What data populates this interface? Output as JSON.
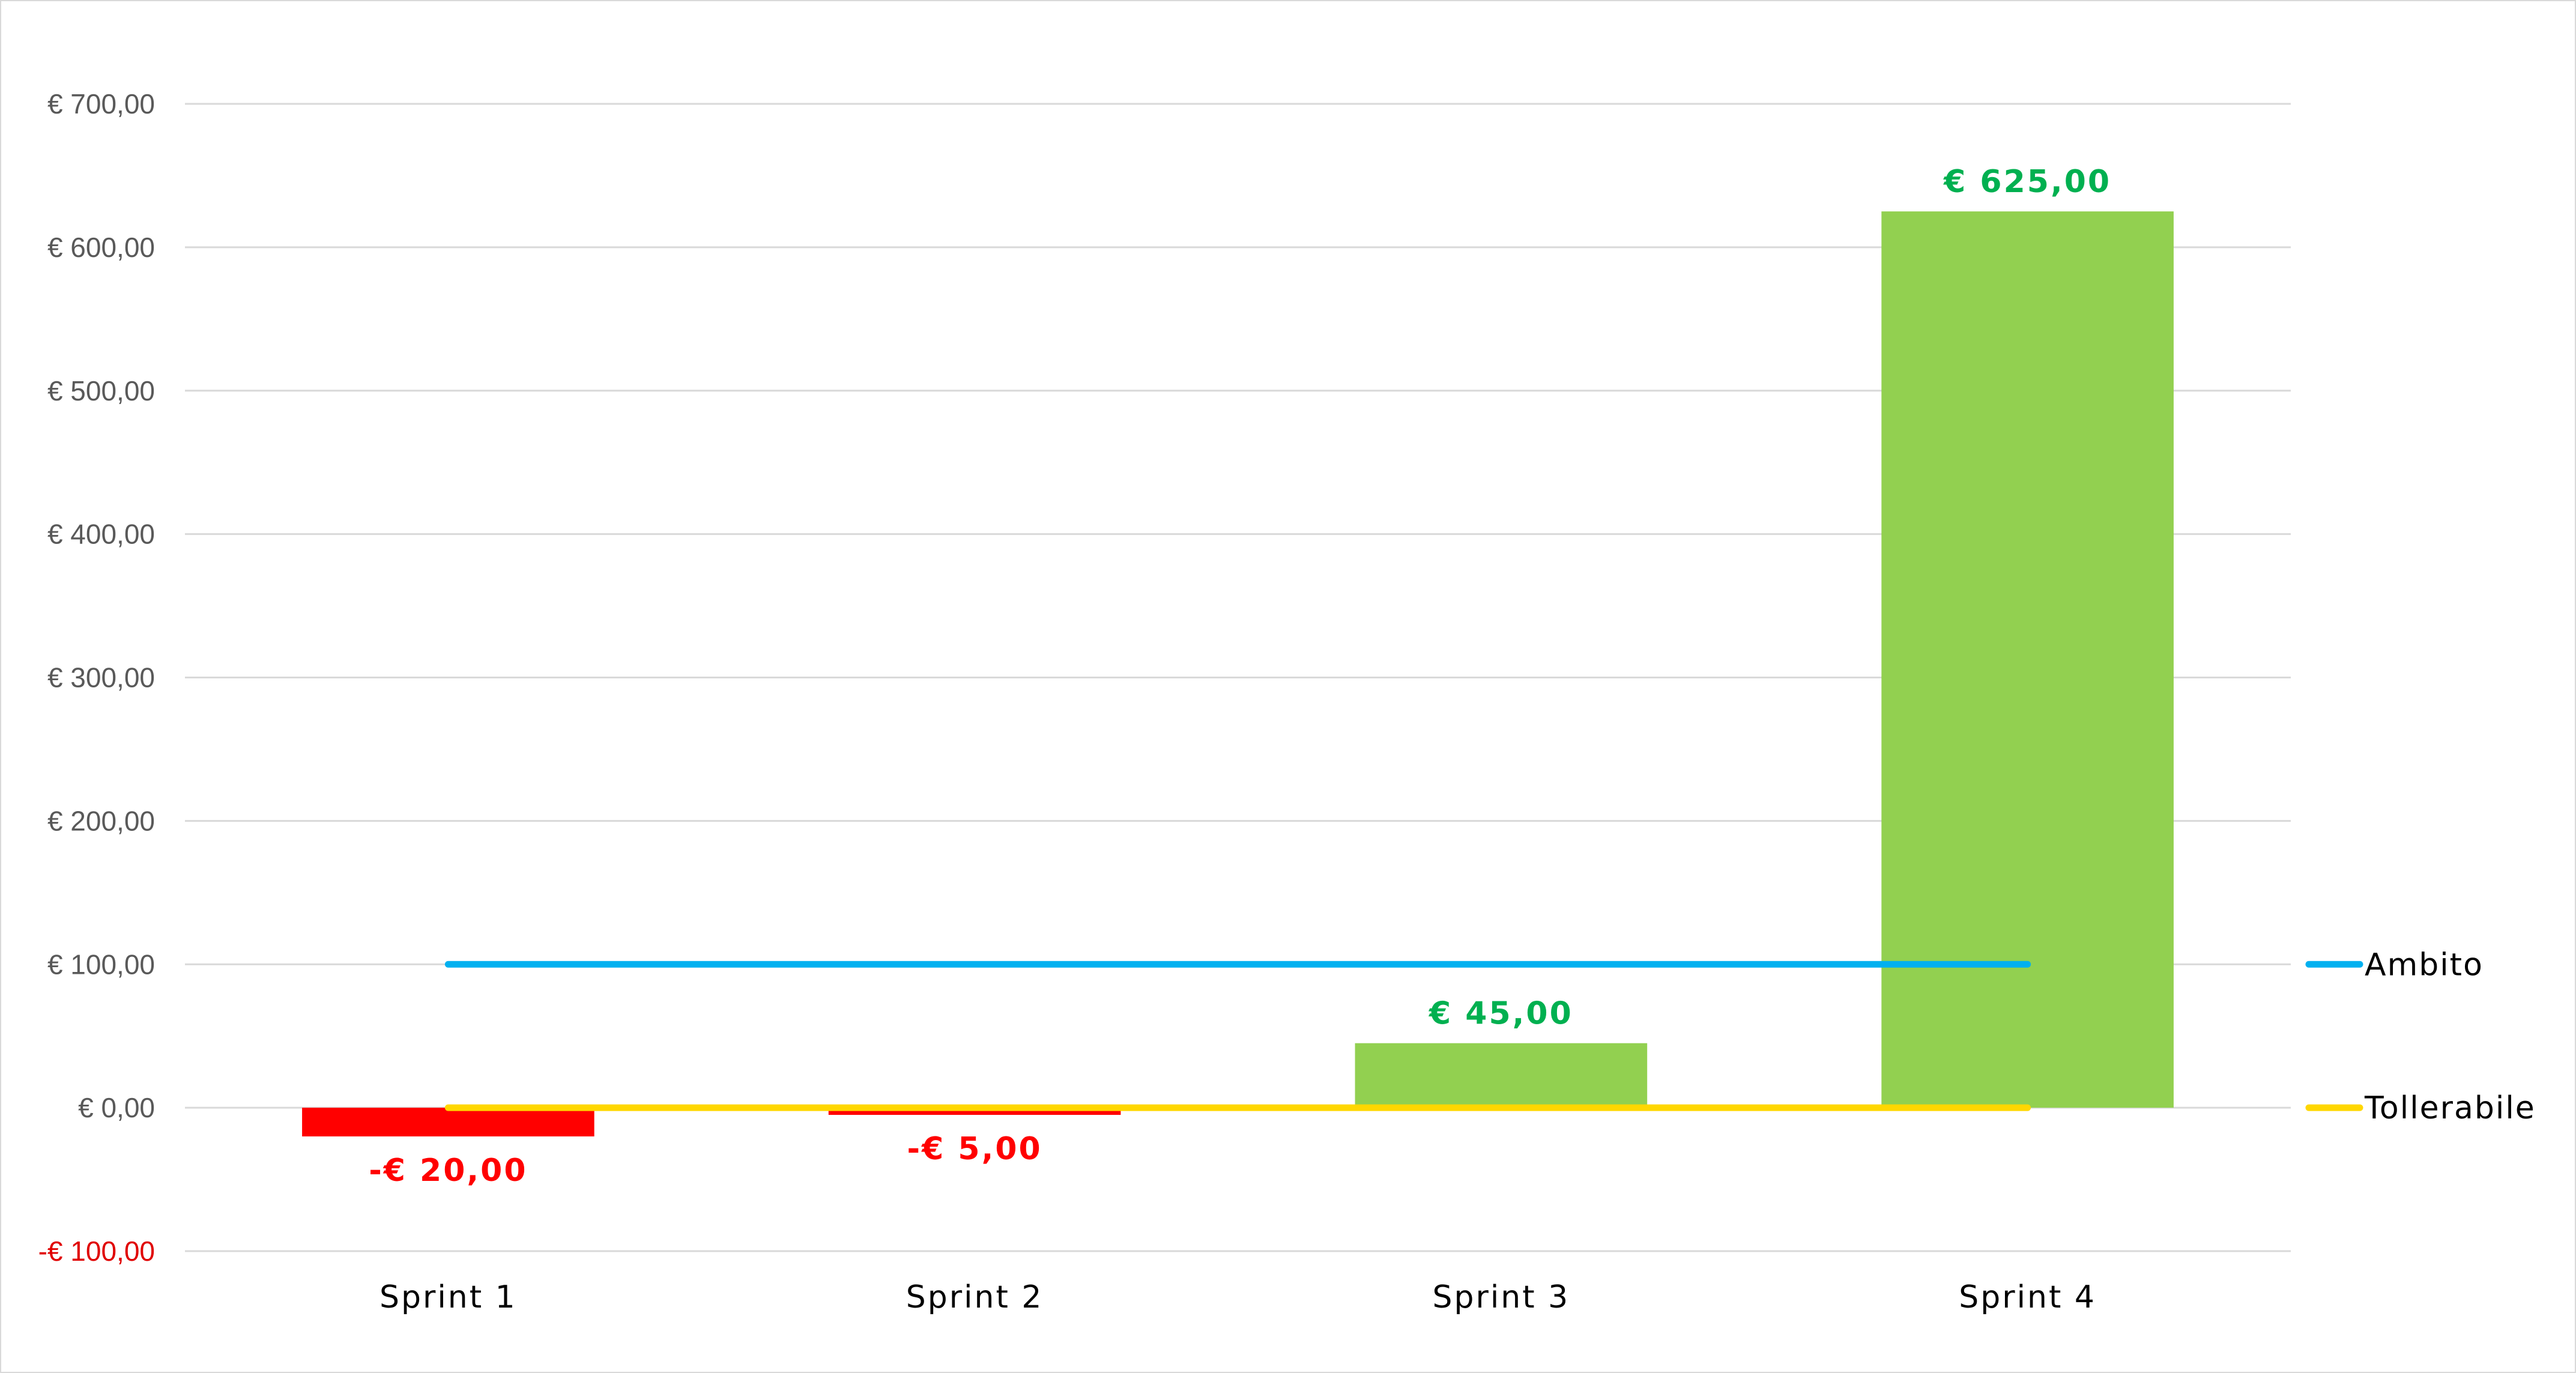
{
  "chart_data": {
    "type": "bar",
    "title": "",
    "xlabel": "",
    "ylabel": "",
    "categories": [
      "Sprint 1",
      "Sprint 2",
      "Sprint 3",
      "Sprint 4"
    ],
    "values": [
      -20,
      -5,
      45,
      625
    ],
    "value_labels": [
      "-€ 20,00",
      "-€ 5,00",
      "€ 45,00",
      "€ 625,00"
    ],
    "ylim": [
      -100,
      700
    ],
    "yticks": [
      -100,
      0,
      100,
      200,
      300,
      400,
      500,
      600,
      700
    ],
    "ytick_labels": [
      "-€ 100,00",
      "€ 0,00",
      "€ 100,00",
      "€ 200,00",
      "€ 300,00",
      "€ 400,00",
      "€ 500,00",
      "€ 600,00",
      "€ 700,00"
    ],
    "grid": true,
    "colors": {
      "positive": "#92d050",
      "negative": "#ff0000",
      "positive_label": "#00b050",
      "negative_label": "#ff0000",
      "gridline": "#d9d9d9",
      "axis_label": "#595959"
    },
    "lines": [
      {
        "name": "Ambito",
        "value": 100,
        "color": "#00b0f0"
      },
      {
        "name": "Tollerabile",
        "value": 0,
        "color": "#ffd700"
      }
    ],
    "legend": "right"
  }
}
